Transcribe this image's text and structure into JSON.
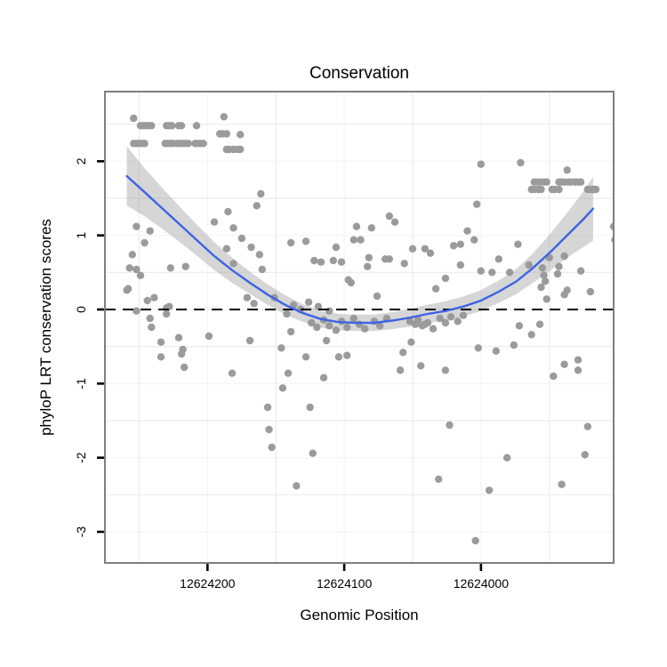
{
  "figure": {
    "title": "Conservation",
    "x_axis": {
      "label": "Genomic Position",
      "tick_labels": [
        "12624200",
        "12624100",
        "12624000"
      ],
      "tick_values": [
        12624200,
        12624100,
        12624000
      ],
      "direction": "reversed"
    },
    "y_axis": {
      "label": "phyloP LRT conservation scores",
      "tick_labels": [
        "2",
        "1",
        "0",
        "-1",
        "-2",
        "-3"
      ],
      "tick_values": [
        2,
        1,
        0,
        -1,
        -2,
        -3
      ]
    }
  },
  "colors": {
    "background": "#FFFFFF",
    "panel_border": "#7F7F7F",
    "grid_major": "#F6F6F6",
    "grid_minor": "#EBEBEB",
    "point": "#9B9B9B",
    "smooth_line": "#3D63E5",
    "ribbon_fill": "#999999",
    "ribbon_opacity": 0.4,
    "zero_line": "#000000",
    "tick": "#000000",
    "text": "#000000"
  },
  "chart_data": {
    "type": "scatter",
    "title": "Conservation",
    "xlabel": "Genomic Position",
    "ylabel": "phyloP LRT conservation scores",
    "legend": "none",
    "x_reversed": true,
    "x_domain": [
      12624275,
      12623903
    ],
    "y_domain": [
      2.94,
      -3.42
    ],
    "x_ticks": [
      12624200,
      12624100,
      12624000
    ],
    "y_ticks": [
      2,
      1,
      0,
      -1,
      -2,
      -3
    ],
    "x_minor_gridlines": [
      12624250,
      12624150,
      12624050,
      12623950
    ],
    "y_minor_gridlines": [
      2.5,
      1.5,
      0.5,
      -0.5,
      -1.5,
      -2.5
    ],
    "zero_reference_line": 0,
    "smooth": {
      "x": [
        12624259,
        12624247,
        12624234,
        12624221,
        12624208,
        12624195,
        12624182,
        12624169,
        12624156,
        12624143,
        12624130,
        12624117,
        12624104,
        12624091,
        12624078,
        12624065,
        12624052,
        12624039,
        12624026,
        12624013,
        12624000,
        12623987,
        12623974,
        12623962,
        12623949,
        12623936,
        12623926,
        12623918
      ],
      "y": [
        1.8,
        1.6,
        1.38,
        1.16,
        0.94,
        0.72,
        0.53,
        0.36,
        0.2,
        0.06,
        -0.05,
        -0.13,
        -0.17,
        -0.18,
        -0.18,
        -0.15,
        -0.11,
        -0.06,
        -0.02,
        0.04,
        0.12,
        0.24,
        0.38,
        0.56,
        0.78,
        1.02,
        1.2,
        1.36
      ],
      "half_width": [
        0.4,
        0.33,
        0.28,
        0.24,
        0.21,
        0.19,
        0.17,
        0.15,
        0.14,
        0.13,
        0.12,
        0.115,
        0.11,
        0.11,
        0.11,
        0.115,
        0.12,
        0.125,
        0.13,
        0.135,
        0.14,
        0.15,
        0.17,
        0.2,
        0.25,
        0.31,
        0.37,
        0.43
      ]
    },
    "points": [
      [
        12624254,
        2.58
      ],
      [
        12624188,
        2.6
      ],
      [
        12624249,
        2.48
      ],
      [
        12624247,
        2.48
      ],
      [
        12624245,
        2.48
      ],
      [
        12624243,
        2.48
      ],
      [
        12624241,
        2.48
      ],
      [
        12624230,
        2.48
      ],
      [
        12624228,
        2.48
      ],
      [
        12624226,
        2.48
      ],
      [
        12624221,
        2.48
      ],
      [
        12624219,
        2.48
      ],
      [
        12624208,
        2.48
      ],
      [
        12624191,
        2.37
      ],
      [
        12624189,
        2.37
      ],
      [
        12624186,
        2.37
      ],
      [
        12624176,
        2.36
      ],
      [
        12624254,
        2.24
      ],
      [
        12624252,
        2.24
      ],
      [
        12624250,
        2.24
      ],
      [
        12624248,
        2.24
      ],
      [
        12624246,
        2.24
      ],
      [
        12624231,
        2.24
      ],
      [
        12624229,
        2.24
      ],
      [
        12624227,
        2.24
      ],
      [
        12624225,
        2.24
      ],
      [
        12624222,
        2.24
      ],
      [
        12624220,
        2.24
      ],
      [
        12624218,
        2.24
      ],
      [
        12624216,
        2.24
      ],
      [
        12624214,
        2.24
      ],
      [
        12624209,
        2.24
      ],
      [
        12624207,
        2.24
      ],
      [
        12624205,
        2.24
      ],
      [
        12624203,
        2.24
      ],
      [
        12624186,
        2.16
      ],
      [
        12624184,
        2.16
      ],
      [
        12624181,
        2.16
      ],
      [
        12624178,
        2.16
      ],
      [
        12624176,
        2.16
      ],
      [
        12623961,
        1.72
      ],
      [
        12623959,
        1.72
      ],
      [
        12623957,
        1.72
      ],
      [
        12623954,
        1.72
      ],
      [
        12623952,
        1.72
      ],
      [
        12623943,
        1.72
      ],
      [
        12623941,
        1.72
      ],
      [
        12623939,
        1.72
      ],
      [
        12623936,
        1.72
      ],
      [
        12623934,
        1.72
      ],
      [
        12623931,
        1.72
      ],
      [
        12623929,
        1.72
      ],
      [
        12623927,
        1.72
      ],
      [
        12623963,
        1.62
      ],
      [
        12623961,
        1.62
      ],
      [
        12623958,
        1.62
      ],
      [
        12623956,
        1.62
      ],
      [
        12623948,
        1.62
      ],
      [
        12623946,
        1.62
      ],
      [
        12623943,
        1.62
      ],
      [
        12623922,
        1.62
      ],
      [
        12623920,
        1.62
      ],
      [
        12623918,
        1.62
      ],
      [
        12623916,
        1.62
      ],
      [
        12623971,
        1.98
      ],
      [
        12624000,
        1.96
      ],
      [
        12623937,
        1.88
      ],
      [
        12624003,
        1.42
      ],
      [
        12623903,
        1.12
      ],
      [
        12623902,
        0.94
      ],
      [
        12624185,
        1.32
      ],
      [
        12624195,
        1.18
      ],
      [
        12624252,
        1.12
      ],
      [
        12624242,
        1.06
      ],
      [
        12624246,
        0.9
      ],
      [
        12624255,
        0.74
      ],
      [
        12624257,
        0.56
      ],
      [
        12624252,
        0.54
      ],
      [
        12624249,
        0.46
      ],
      [
        12624227,
        0.56
      ],
      [
        12624216,
        0.58
      ],
      [
        12624259,
        0.26
      ],
      [
        12624258,
        0.28
      ],
      [
        12624244,
        0.12
      ],
      [
        12624239,
        0.16
      ],
      [
        12624252,
        -0.02
      ],
      [
        12624230,
        0.02
      ],
      [
        12624228,
        0.04
      ],
      [
        12624242,
        -0.12
      ],
      [
        12624234,
        -0.44
      ],
      [
        12624221,
        -0.38
      ],
      [
        12624218,
        -0.54
      ],
      [
        12624241,
        -0.24
      ],
      [
        12624234,
        -0.64
      ],
      [
        12624219,
        -0.6
      ],
      [
        12624217,
        -0.78
      ],
      [
        12624230,
        -0.06
      ],
      [
        12624199,
        -0.36
      ],
      [
        12624182,
        -0.86
      ],
      [
        12624169,
        -0.42
      ],
      [
        12624161,
        1.56
      ],
      [
        12624164,
        1.4
      ],
      [
        12624181,
        1.1
      ],
      [
        12624175,
        0.96
      ],
      [
        12624186,
        0.82
      ],
      [
        12624168,
        0.84
      ],
      [
        12624162,
        0.74
      ],
      [
        12624181,
        0.62
      ],
      [
        12624160,
        0.54
      ],
      [
        12624171,
        0.16
      ],
      [
        12624166,
        0.08
      ],
      [
        12624139,
        0.9
      ],
      [
        12624128,
        0.92
      ],
      [
        12624122,
        0.66
      ],
      [
        12624117,
        0.64
      ],
      [
        12624108,
        0.66
      ],
      [
        12624102,
        0.64
      ],
      [
        12624106,
        0.84
      ],
      [
        12624093,
        0.94
      ],
      [
        12624067,
        1.26
      ],
      [
        12624063,
        1.18
      ],
      [
        12624080,
        1.1
      ],
      [
        12624091,
        1.12
      ],
      [
        12624088,
        0.94
      ],
      [
        12624082,
        0.7
      ],
      [
        12624067,
        0.68
      ],
      [
        12624083,
        0.58
      ],
      [
        12624070,
        0.68
      ],
      [
        12624056,
        0.62
      ],
      [
        12624097,
        0.4
      ],
      [
        12624095,
        0.36
      ],
      [
        12624076,
        0.18
      ],
      [
        12624151,
        0.16
      ],
      [
        12624137,
        0.06
      ],
      [
        12624132,
        0.0
      ],
      [
        12624142,
        -0.06
      ],
      [
        12624126,
        0.1
      ],
      [
        12624119,
        0.04
      ],
      [
        12624111,
        -0.02
      ],
      [
        12624050,
        0.82
      ],
      [
        12624041,
        0.82
      ],
      [
        12624037,
        0.76
      ],
      [
        12624020,
        0.86
      ],
      [
        12624015,
        0.88
      ],
      [
        12624010,
        1.06
      ],
      [
        12624005,
        0.94
      ],
      [
        12623973,
        0.88
      ],
      [
        12623965,
        0.6
      ],
      [
        12624015,
        0.6
      ],
      [
        12623987,
        0.68
      ],
      [
        12624026,
        0.42
      ],
      [
        12624000,
        0.52
      ],
      [
        12623992,
        0.5
      ],
      [
        12624033,
        0.28
      ],
      [
        12623979,
        0.5
      ],
      [
        12623956,
        0.3
      ],
      [
        12623944,
        0.48
      ],
      [
        12623927,
        0.52
      ],
      [
        12623939,
        0.2
      ],
      [
        12623920,
        0.24
      ],
      [
        12623950,
        0.7
      ],
      [
        12623939,
        0.72
      ],
      [
        12623955,
        0.56
      ],
      [
        12623943,
        0.58
      ],
      [
        12623954,
        0.46
      ],
      [
        12623953,
        0.38
      ],
      [
        12623937,
        0.26
      ],
      [
        12623952,
        0.14
      ],
      [
        12623957,
        -0.2
      ],
      [
        12624124,
        -0.18
      ],
      [
        12624120,
        -0.24
      ],
      [
        12624115,
        -0.14
      ],
      [
        12624111,
        -0.22
      ],
      [
        12624106,
        -0.28
      ],
      [
        12624102,
        -0.16
      ],
      [
        12624098,
        -0.24
      ],
      [
        12624093,
        -0.12
      ],
      [
        12624089,
        -0.2
      ],
      [
        12624085,
        -0.26
      ],
      [
        12624078,
        -0.16
      ],
      [
        12624074,
        -0.22
      ],
      [
        12624069,
        -0.12
      ],
      [
        12624052,
        -0.16
      ],
      [
        12624048,
        -0.2
      ],
      [
        12624046,
        -0.14
      ],
      [
        12624043,
        -0.22
      ],
      [
        12624039,
        -0.18
      ],
      [
        12624035,
        -0.26
      ],
      [
        12624041,
        -0.2
      ],
      [
        12624030,
        -0.12
      ],
      [
        12624026,
        -0.18
      ],
      [
        12624022,
        -0.1
      ],
      [
        12624017,
        -0.16
      ],
      [
        12624013,
        -0.08
      ],
      [
        12624051,
        -0.44
      ],
      [
        12624057,
        -0.58
      ],
      [
        12624044,
        -0.76
      ],
      [
        12624059,
        -0.82
      ],
      [
        12624026,
        -0.82
      ],
      [
        12624002,
        -0.52
      ],
      [
        12623989,
        -0.56
      ],
      [
        12623976,
        -0.48
      ],
      [
        12623972,
        -0.22
      ],
      [
        12623963,
        -0.34
      ],
      [
        12623947,
        -0.9
      ],
      [
        12623929,
        -0.82
      ],
      [
        12624023,
        -1.56
      ],
      [
        12623981,
        -2.0
      ],
      [
        12624031,
        -2.29
      ],
      [
        12623994,
        -2.44
      ],
      [
        12623941,
        -2.36
      ],
      [
        12623924,
        -1.96
      ],
      [
        12624004,
        -3.12
      ],
      [
        12623922,
        -1.58
      ],
      [
        12623939,
        -0.74
      ],
      [
        12623929,
        -0.68
      ],
      [
        12624156,
        -1.32
      ],
      [
        12624155,
        -1.62
      ],
      [
        12624153,
        -1.86
      ],
      [
        12624145,
        -1.06
      ],
      [
        12624141,
        -0.86
      ],
      [
        12624146,
        -0.52
      ],
      [
        12624139,
        -0.3
      ],
      [
        12624128,
        -0.64
      ],
      [
        12624125,
        -1.32
      ],
      [
        12624135,
        -2.38
      ],
      [
        12624123,
        -1.94
      ],
      [
        12624115,
        -0.92
      ],
      [
        12624113,
        -0.42
      ],
      [
        12624104,
        -0.64
      ],
      [
        12624098,
        -0.62
      ]
    ]
  }
}
